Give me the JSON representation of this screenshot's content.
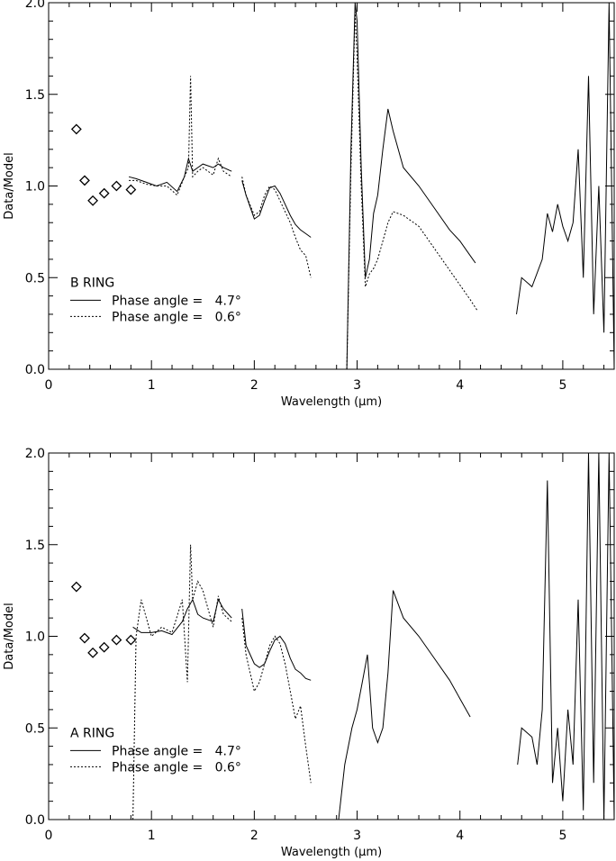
{
  "chart_data": [
    {
      "type": "line",
      "panel_label": "B RING",
      "xlabel": "Wavelength (μm)",
      "ylabel": "Data/Model",
      "xlim": [
        0,
        5.5
      ],
      "ylim": [
        0,
        2.0
      ],
      "xticks": [
        0,
        1,
        2,
        3,
        4,
        5
      ],
      "yticks": [
        0.0,
        0.5,
        1.0,
        1.5,
        2.0
      ],
      "xtick_labels": [
        "0",
        "1",
        "2",
        "3",
        "4",
        "5"
      ],
      "ytick_labels": [
        "0.0",
        "0.5",
        "1.0",
        "1.5",
        "2.0"
      ],
      "grid": false,
      "legend_position": "lower-left",
      "series": [
        {
          "name": "Phase angle =   4.7°",
          "style": "solid",
          "segments": [
            {
              "x": [
                0.78,
                0.85,
                0.95,
                1.05,
                1.15,
                1.25,
                1.32,
                1.36,
                1.4,
                1.45,
                1.5,
                1.6,
                1.65,
                1.7,
                1.78
              ],
              "y": [
                1.05,
                1.04,
                1.02,
                1.0,
                1.02,
                0.97,
                1.05,
                1.15,
                1.08,
                1.1,
                1.12,
                1.1,
                1.12,
                1.1,
                1.08
              ]
            },
            {
              "x": [
                1.88,
                1.92,
                2.0,
                2.05,
                2.1,
                2.15,
                2.2,
                2.25,
                2.3,
                2.35,
                2.4,
                2.45,
                2.5,
                2.55
              ],
              "y": [
                1.03,
                0.95,
                0.82,
                0.84,
                0.92,
                0.99,
                1.0,
                0.96,
                0.9,
                0.84,
                0.79,
                0.76,
                0.74,
                0.72
              ]
            },
            {
              "x": [
                2.9,
                2.94,
                2.98,
                3.0,
                3.04,
                3.08,
                3.12,
                3.16,
                3.2,
                3.25,
                3.3,
                3.35,
                3.45,
                3.6,
                3.75,
                3.9,
                4.0,
                4.1,
                4.15
              ],
              "y": [
                0.0,
                1.2,
                2.0,
                1.9,
                1.1,
                0.5,
                0.6,
                0.85,
                0.95,
                1.2,
                1.42,
                1.3,
                1.1,
                1.0,
                0.88,
                0.76,
                0.7,
                0.62,
                0.58
              ]
            },
            {
              "x": [
                4.55,
                4.6,
                4.7,
                4.8,
                4.85,
                4.9,
                4.95,
                5.0,
                5.05,
                5.1,
                5.15,
                5.2,
                5.25,
                5.3,
                5.35,
                5.4,
                5.45,
                5.5
              ],
              "y": [
                0.3,
                0.5,
                0.45,
                0.6,
                0.85,
                0.75,
                0.9,
                0.78,
                0.7,
                0.8,
                1.2,
                0.5,
                1.6,
                0.3,
                1.0,
                0.2,
                2.0,
                0.0
              ]
            }
          ]
        },
        {
          "name": "Phase angle =   0.6°",
          "style": "dotted",
          "segments": [
            {
              "x": [
                0.78,
                0.85,
                0.95,
                1.05,
                1.15,
                1.25,
                1.32,
                1.36,
                1.38,
                1.4,
                1.45,
                1.5,
                1.6,
                1.65,
                1.7,
                1.78
              ],
              "y": [
                1.03,
                1.03,
                1.01,
                1.0,
                1.0,
                0.95,
                1.05,
                1.1,
                1.6,
                1.05,
                1.08,
                1.1,
                1.06,
                1.15,
                1.08,
                1.05
              ]
            },
            {
              "x": [
                1.88,
                1.92,
                2.0,
                2.05,
                2.1,
                2.15,
                2.2,
                2.25,
                2.3,
                2.35,
                2.4,
                2.45,
                2.5,
                2.55
              ],
              "y": [
                1.05,
                0.95,
                0.84,
                0.86,
                0.95,
                1.0,
                0.98,
                0.92,
                0.86,
                0.8,
                0.72,
                0.65,
                0.62,
                0.5
              ]
            },
            {
              "x": [
                2.9,
                2.94,
                2.98,
                3.0,
                3.04,
                3.08,
                3.12,
                3.16,
                3.2,
                3.25,
                3.3,
                3.35,
                3.45,
                3.6,
                3.75,
                3.9,
                4.0,
                4.1,
                4.17
              ],
              "y": [
                0.0,
                1.1,
                1.95,
                1.7,
                1.0,
                0.45,
                0.52,
                0.55,
                0.6,
                0.7,
                0.8,
                0.86,
                0.84,
                0.78,
                0.66,
                0.54,
                0.46,
                0.38,
                0.32
              ]
            }
          ]
        }
      ],
      "markers": {
        "shape": "diamond",
        "x": [
          0.27,
          0.35,
          0.43,
          0.54,
          0.66,
          0.8
        ],
        "y": [
          1.31,
          1.03,
          0.92,
          0.96,
          1.0,
          0.98
        ]
      }
    },
    {
      "type": "line",
      "panel_label": "A RING",
      "xlabel": "Wavelength (μm)",
      "ylabel": "Data/Model",
      "xlim": [
        0,
        5.5
      ],
      "ylim": [
        0,
        2.0
      ],
      "xticks": [
        0,
        1,
        2,
        3,
        4,
        5
      ],
      "yticks": [
        0.0,
        0.5,
        1.0,
        1.5,
        2.0
      ],
      "xtick_labels": [
        "0",
        "1",
        "2",
        "3",
        "4",
        "5"
      ],
      "ytick_labels": [
        "0.0",
        "0.5",
        "1.0",
        "1.5",
        "2.0"
      ],
      "grid": false,
      "legend_position": "lower-left",
      "series": [
        {
          "name": "Phase angle =   4.7°",
          "style": "solid",
          "segments": [
            {
              "x": [
                0.82,
                0.9,
                1.0,
                1.1,
                1.2,
                1.3,
                1.35,
                1.4,
                1.45,
                1.5,
                1.6,
                1.65,
                1.7,
                1.78
              ],
              "y": [
                1.05,
                1.02,
                1.02,
                1.03,
                1.01,
                1.08,
                1.15,
                1.2,
                1.12,
                1.1,
                1.08,
                1.2,
                1.15,
                1.1
              ]
            },
            {
              "x": [
                1.88,
                1.92,
                2.0,
                2.05,
                2.1,
                2.15,
                2.2,
                2.25,
                2.3,
                2.35,
                2.4,
                2.45,
                2.5,
                2.55
              ],
              "y": [
                1.15,
                0.95,
                0.85,
                0.83,
                0.85,
                0.92,
                0.98,
                1.0,
                0.96,
                0.88,
                0.82,
                0.8,
                0.77,
                0.76
              ]
            },
            {
              "x": [
                2.82,
                2.88,
                2.95,
                3.0,
                3.05,
                3.1,
                3.15,
                3.2,
                3.25,
                3.3,
                3.35,
                3.45,
                3.6,
                3.75,
                3.9,
                4.0,
                4.1
              ],
              "y": [
                0.0,
                0.3,
                0.5,
                0.6,
                0.75,
                0.9,
                0.5,
                0.42,
                0.5,
                0.8,
                1.25,
                1.1,
                1.0,
                0.88,
                0.76,
                0.66,
                0.56
              ]
            },
            {
              "x": [
                4.56,
                4.6,
                4.7,
                4.75,
                4.8,
                4.85,
                4.9,
                4.95,
                5.0,
                5.05,
                5.1,
                5.15,
                5.2,
                5.25,
                5.3,
                5.35,
                5.4,
                5.45,
                5.5
              ],
              "y": [
                0.3,
                0.5,
                0.45,
                0.3,
                0.6,
                1.85,
                0.2,
                0.5,
                0.1,
                0.6,
                0.3,
                1.2,
                0.05,
                2.0,
                0.2,
                2.0,
                0.0,
                2.0,
                0.0
              ]
            }
          ]
        },
        {
          "name": "Phase angle =   0.6°",
          "style": "dotted",
          "segments": [
            {
              "x": [
                0.82,
                0.85,
                0.9,
                1.0,
                1.1,
                1.2,
                1.3,
                1.35,
                1.38,
                1.4,
                1.45,
                1.5,
                1.6,
                1.65,
                1.7,
                1.78
              ],
              "y": [
                0.0,
                1.0,
                1.2,
                1.0,
                1.05,
                1.02,
                1.2,
                0.75,
                1.5,
                1.2,
                1.3,
                1.25,
                1.05,
                1.22,
                1.12,
                1.08
              ]
            },
            {
              "x": [
                1.88,
                1.92,
                2.0,
                2.05,
                2.1,
                2.15,
                2.2,
                2.25,
                2.3,
                2.35,
                2.4,
                2.45,
                2.5,
                2.55
              ],
              "y": [
                1.1,
                0.9,
                0.7,
                0.75,
                0.85,
                0.95,
                1.0,
                0.96,
                0.85,
                0.7,
                0.55,
                0.62,
                0.4,
                0.2
              ]
            }
          ]
        }
      ],
      "markers": {
        "shape": "diamond",
        "x": [
          0.27,
          0.35,
          0.43,
          0.54,
          0.66,
          0.8
        ],
        "y": [
          1.27,
          0.99,
          0.91,
          0.94,
          0.98,
          0.98
        ]
      }
    }
  ]
}
